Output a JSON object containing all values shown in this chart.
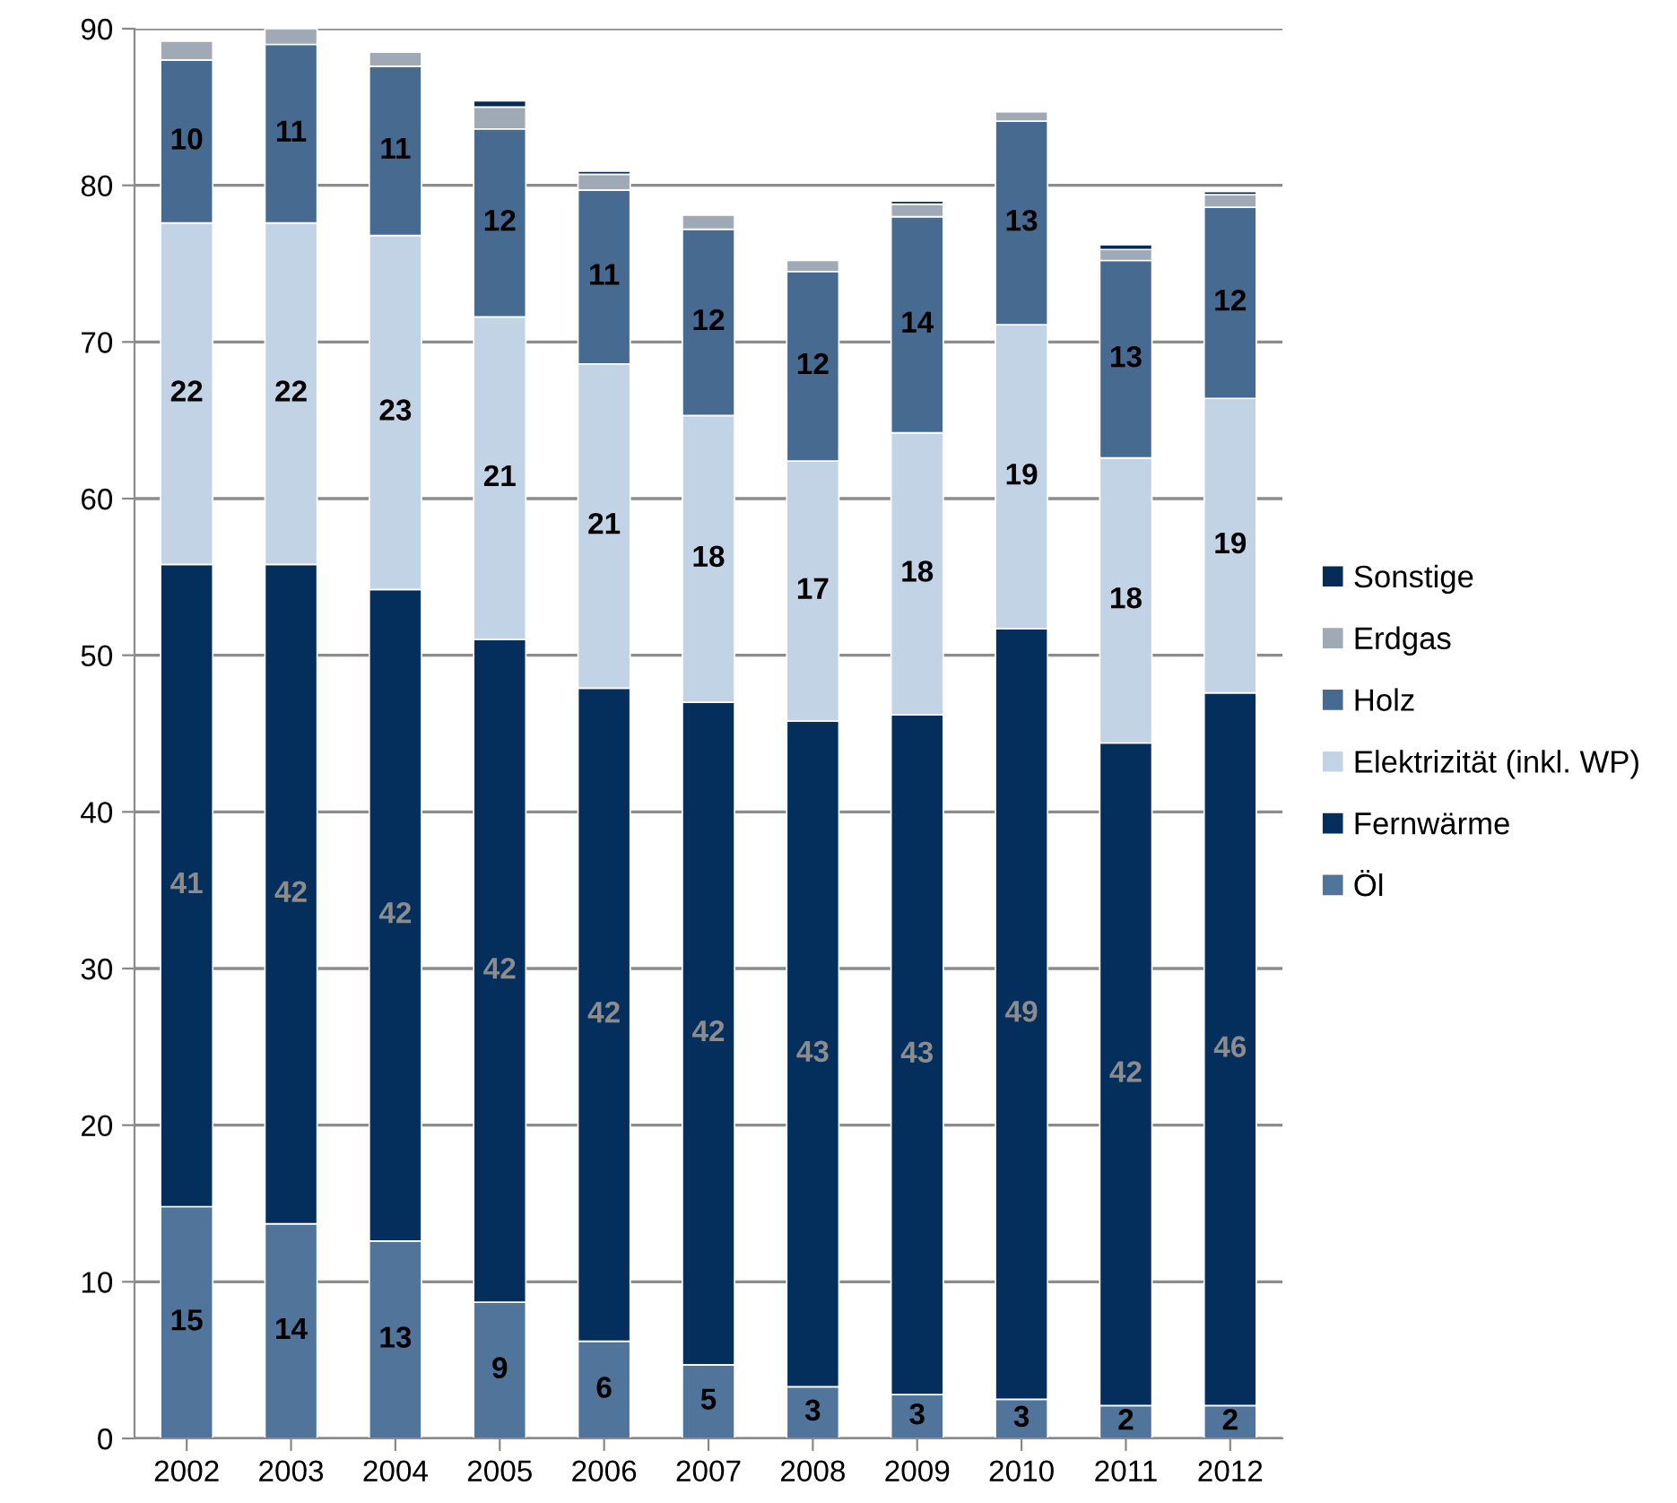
{
  "chart_data": {
    "type": "bar",
    "stacked": true,
    "categories": [
      "2002",
      "2003",
      "2004",
      "2005",
      "2006",
      "2007",
      "2008",
      "2009",
      "2010",
      "2011",
      "2012"
    ],
    "ylim": [
      0,
      90
    ],
    "yticks": [
      0,
      10,
      20,
      30,
      40,
      50,
      60,
      70,
      80,
      90
    ],
    "grid": "y",
    "legend": "right",
    "series": [
      {
        "name": "Öl",
        "color": "#50749a",
        "values": [
          14.8,
          13.7,
          12.6,
          8.7,
          6.2,
          4.7,
          3.3,
          2.8,
          2.5,
          2.1,
          2.1
        ],
        "value_labels": [
          "15",
          "14",
          "13",
          "9",
          "6",
          "5",
          "3",
          "3",
          "3",
          "2",
          "2"
        ]
      },
      {
        "name": "Fernwärme",
        "color": "#042e5c",
        "values": [
          41.0,
          42.1,
          41.6,
          42.3,
          41.7,
          42.3,
          42.5,
          43.4,
          49.2,
          42.3,
          45.5
        ],
        "value_labels": [
          "41",
          "42",
          "42",
          "42",
          "42",
          "42",
          "43",
          "43",
          "49",
          "42",
          "46"
        ]
      },
      {
        "name": "Elektrizität (inkl. WP)",
        "color": "#c3d3e6",
        "values": [
          21.8,
          21.8,
          22.6,
          20.6,
          20.7,
          18.3,
          16.6,
          18.0,
          19.4,
          18.2,
          18.8
        ],
        "value_labels": [
          "22",
          "22",
          "23",
          "21",
          "21",
          "18",
          "17",
          "18",
          "19",
          "18",
          "19"
        ]
      },
      {
        "name": "Holz",
        "color": "#476a90",
        "values": [
          10.4,
          11.4,
          10.8,
          12.0,
          11.1,
          11.9,
          12.1,
          13.8,
          13.0,
          12.6,
          12.2
        ],
        "value_labels": [
          "10",
          "11",
          "11",
          "12",
          "11",
          "12",
          "12",
          "14",
          "13",
          "13",
          "12"
        ]
      },
      {
        "name": "Erdgas",
        "color": "#a0a9b6",
        "values": [
          1.2,
          1.0,
          0.9,
          1.4,
          1.0,
          0.9,
          0.7,
          0.8,
          0.6,
          0.7,
          0.8
        ]
      },
      {
        "name": "Sonstige",
        "color": "#052b57",
        "values": [
          null,
          null,
          null,
          0.4,
          0.2,
          null,
          null,
          0.2,
          null,
          0.3,
          0.2
        ]
      }
    ]
  }
}
